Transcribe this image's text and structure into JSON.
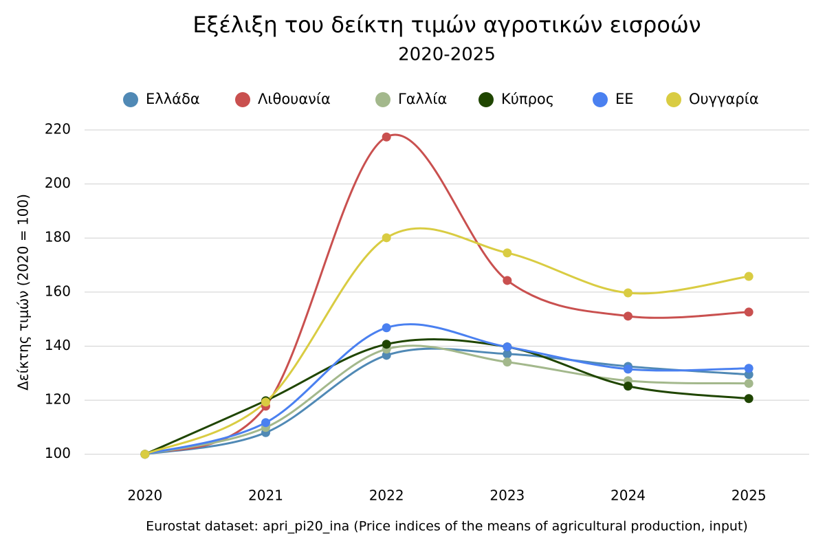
{
  "chart_data": {
    "type": "line",
    "title": "Εξέλιξη του δείκτη τιμών αγροτικών εισροών",
    "subtitle": "2020-2025",
    "y_label": "Δείκτης τιμών (2020 = 100)",
    "source": "Eurostat dataset: apri_pi20_ina (Price indices of the means of agricultural production, input)",
    "categories": [
      "2020",
      "2021",
      "2022",
      "2023",
      "2024",
      "2025"
    ],
    "series": [
      {
        "name": "Ελλάδα",
        "color": "#5089b5",
        "values": [
          100,
          108,
          136.6,
          137.1,
          132.5,
          129.5
        ]
      },
      {
        "name": "Λιθουανία",
        "color": "#c9504f",
        "values": [
          100,
          117.8,
          217.4,
          164.3,
          151.1,
          152.6
        ]
      },
      {
        "name": "Γαλλία",
        "color": "#a3b88c",
        "values": [
          100,
          109.9,
          138.9,
          134.1,
          127.2,
          126.2
        ]
      },
      {
        "name": "Κύπρος",
        "color": "#1f4500",
        "values": [
          100,
          119.8,
          140.7,
          139.7,
          125.2,
          120.6
        ]
      },
      {
        "name": "ΕΕ",
        "color": "#4a80f0",
        "values": [
          100,
          111.7,
          146.8,
          139.7,
          131.5,
          131.8
        ]
      },
      {
        "name": "Ουγγαρία",
        "color": "#d9cc42",
        "values": [
          100,
          119.3,
          180.1,
          174.5,
          159.7,
          165.8
        ]
      }
    ],
    "ylim": [
      90,
      220
    ],
    "yticks": [
      100,
      120,
      140,
      160,
      180,
      200,
      220
    ],
    "grid": true,
    "legend": "top"
  }
}
